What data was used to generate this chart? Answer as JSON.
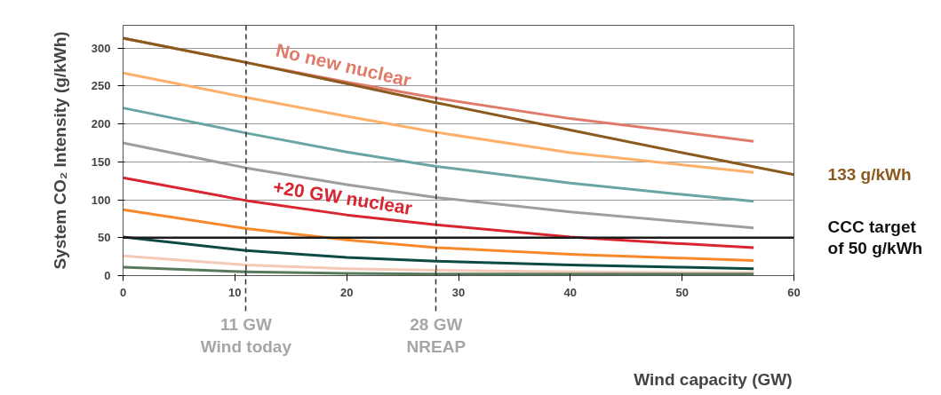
{
  "chart_data": {
    "type": "line",
    "xlabel": "Wind capacity (GW)",
    "ylabel": "System CO₂ Intensity (g/kWh)",
    "xlim": [
      0,
      60
    ],
    "ylim": [
      0,
      330
    ],
    "xticks": [
      0,
      10,
      20,
      30,
      40,
      50,
      60
    ],
    "yticks": [
      0,
      50,
      100,
      150,
      200,
      250,
      300
    ],
    "grid": "y",
    "legend": false,
    "line_style": "solid",
    "marker": "none",
    "x": [
      0,
      11,
      20,
      28,
      40,
      50,
      56.4
    ],
    "series": [
      {
        "name": "No new nuclear",
        "color": "#e07b6a",
        "values": [
          313,
          281,
          255,
          234,
          207,
          189,
          177
        ]
      },
      {
        "color": "#8b5a1e",
        "x": [
          0,
          11,
          20,
          28,
          40,
          50,
          60
        ],
        "values": [
          313,
          281,
          253,
          228,
          192,
          162,
          133
        ]
      },
      {
        "color": "#fdb069",
        "values": [
          267,
          235,
          210,
          189,
          162,
          146,
          136
        ]
      },
      {
        "color": "#6aa5a5",
        "values": [
          221,
          188,
          163,
          144,
          122,
          107,
          98
        ]
      },
      {
        "color": "#9e9e9e",
        "values": [
          175,
          142,
          120,
          103,
          84,
          71,
          63
        ]
      },
      {
        "name": "+20 GW nuclear",
        "color": "#d7262f",
        "values": [
          129,
          99,
          80,
          67,
          51,
          42,
          37
        ]
      },
      {
        "color": "#f7892a",
        "values": [
          87,
          62,
          47,
          37,
          28,
          23,
          20
        ]
      },
      {
        "color": "#0d4a45",
        "values": [
          51,
          33,
          24,
          19,
          14,
          11,
          9
        ]
      },
      {
        "color": "#f5c9b8",
        "values": [
          26,
          14,
          9,
          7,
          5,
          4,
          4
        ]
      },
      {
        "color": "#587a5c",
        "values": [
          11,
          5,
          3,
          2,
          2,
          2,
          2
        ]
      }
    ],
    "ref_lines": [
      {
        "axis": "x",
        "value": 11,
        "label": "11 GW\nWind today",
        "color": "#333333",
        "line_style": "dashed"
      },
      {
        "axis": "x",
        "value": 28,
        "label": "28 GW\nNREAP",
        "color": "#333333",
        "line_style": "dashed"
      },
      {
        "axis": "y",
        "value": 50,
        "label": "CCC target\nof 50 g/kWh",
        "color": "#1a1a1a",
        "line_style": "solid"
      }
    ],
    "annotations": [
      {
        "text": "133 g/kWh",
        "x": 60,
        "y": 133
      }
    ]
  }
}
